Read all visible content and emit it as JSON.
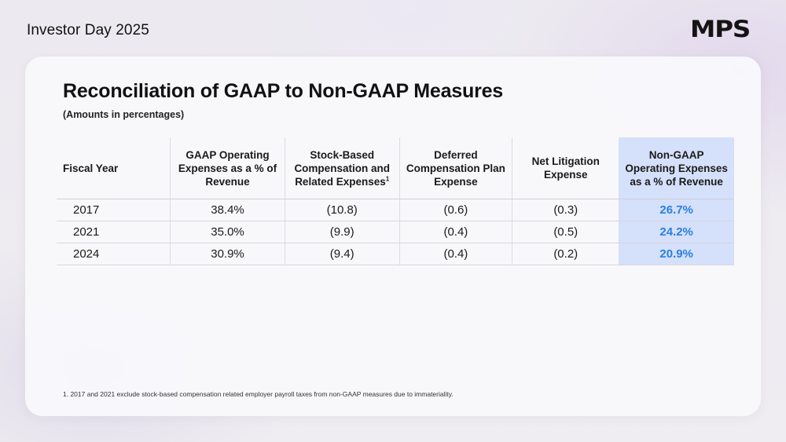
{
  "header": {
    "title": "Investor Day 2025",
    "logo_text": "MPS"
  },
  "slide": {
    "title": "Reconciliation of GAAP to Non-GAAP Measures",
    "subtitle": "(Amounts in percentages)",
    "footnote": "1. 2017 and 2021 exclude stock-based compensation related employer payroll taxes from non-GAAP measures due to immateriality."
  },
  "table": {
    "columns": [
      "Fiscal Year",
      "GAAP Operating Expenses as a % of Revenue",
      "Stock-Based Compensation and Related Expenses",
      "Deferred Compensation Plan Expense",
      "Net Litigation Expense",
      "Non-GAAP Operating Expenses as a % of Revenue"
    ],
    "sbc_footnote_marker": "1",
    "rows": [
      [
        "2017",
        "38.4%",
        "(10.8)",
        "(0.6)",
        "(0.3)",
        "26.7%"
      ],
      [
        "2021",
        "35.0%",
        "(9.9)",
        "(0.4)",
        "(0.5)",
        "24.2%"
      ],
      [
        "2024",
        "30.9%",
        "(9.4)",
        "(0.4)",
        "(0.2)",
        "20.9%"
      ]
    ]
  },
  "colors": {
    "highlight_column_bg": "#d5e0fb",
    "highlight_value_text": "#2b7fe0"
  }
}
